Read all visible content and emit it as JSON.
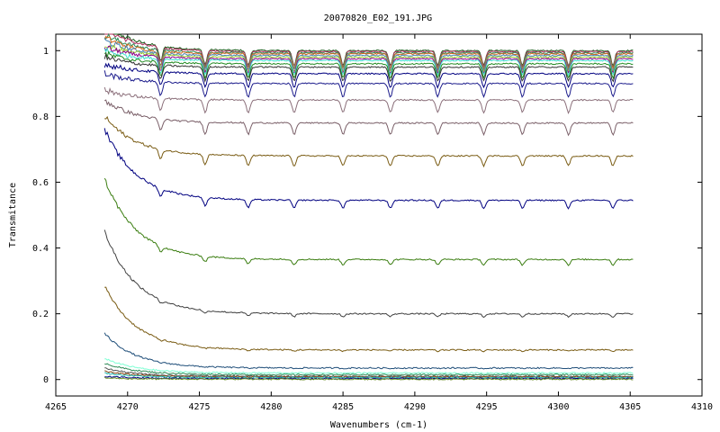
{
  "chart_data": {
    "type": "line",
    "title": "20070820_E02_191.JPG",
    "xlabel": "Wavenumbers (cm-1)",
    "ylabel": "Transmitance",
    "xlim": [
      4265,
      4310
    ],
    "ylim": [
      -0.05,
      1.05
    ],
    "x_ticks": [
      "4265",
      "4270",
      "4275",
      "4280",
      "4285",
      "4290",
      "4295",
      "4300",
      "4305",
      "4310"
    ],
    "y_ticks": [
      "0",
      "0.2",
      "0.4",
      "0.6",
      "0.8",
      "1"
    ],
    "grid": false,
    "legend": "none",
    "x_start": 4268.4,
    "x_end": 4305.2,
    "absorption_lines": [
      4272.3,
      4275.4,
      4278.4,
      4281.6,
      4285.0,
      4288.3,
      4291.6,
      4294.8,
      4297.5,
      4300.7,
      4303.8
    ],
    "series": [
      {
        "color": "#1a5c1a",
        "start": 1.08,
        "plateau": 1.0
      },
      {
        "color": "#b03060",
        "start": 1.07,
        "plateau": 0.997
      },
      {
        "color": "#2e8b57",
        "start": 1.05,
        "plateau": 0.993
      },
      {
        "color": "#d2691e",
        "start": 1.04,
        "plateau": 0.99
      },
      {
        "color": "#4682b4",
        "start": 1.03,
        "plateau": 0.985
      },
      {
        "color": "#9acd32",
        "start": 1.02,
        "plateau": 0.98
      },
      {
        "color": "#8b008b",
        "start": 1.01,
        "plateau": 0.975
      },
      {
        "color": "#40e0d0",
        "start": 1.0,
        "plateau": 0.97
      },
      {
        "color": "#228b22",
        "start": 0.99,
        "plateau": 0.96
      },
      {
        "color": "#333333",
        "start": 0.98,
        "plateau": 0.95
      },
      {
        "color": "#000080",
        "start": 0.96,
        "plateau": 0.93
      },
      {
        "color": "#1c1c8c",
        "start": 0.93,
        "plateau": 0.9
      },
      {
        "color": "#8b6f7a",
        "start": 0.88,
        "plateau": 0.85
      },
      {
        "color": "#7a5f68",
        "start": 0.85,
        "plateau": 0.78
      },
      {
        "color": "#7a5c14",
        "start": 0.8,
        "plateau": 0.68
      },
      {
        "color": "#000080",
        "start": 0.76,
        "plateau": 0.545
      },
      {
        "color": "#3a7d10",
        "start": 0.61,
        "plateau": 0.365
      },
      {
        "color": "#404040",
        "start": 0.45,
        "plateau": 0.2
      },
      {
        "color": "#7a5c14",
        "start": 0.285,
        "plateau": 0.09
      },
      {
        "color": "#1f4e79",
        "start": 0.14,
        "plateau": 0.035
      },
      {
        "color": "#7fffd4",
        "start": 0.065,
        "plateau": 0.02
      },
      {
        "color": "#2e8b57",
        "start": 0.05,
        "plateau": 0.015
      },
      {
        "color": "#555555",
        "start": 0.035,
        "plateau": 0.01
      },
      {
        "color": "#8b4513",
        "start": 0.025,
        "plateau": 0.008
      },
      {
        "color": "#20b2aa",
        "start": 0.02,
        "plateau": 0.006
      },
      {
        "color": "#000080",
        "start": 0.01,
        "plateau": 0.003
      },
      {
        "color": "#6b8e23",
        "start": 0.005,
        "plateau": 0.001
      }
    ]
  }
}
